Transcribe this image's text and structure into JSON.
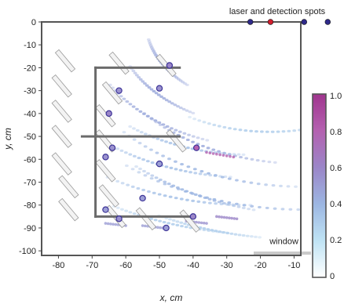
{
  "chart_data": {
    "type": "scatter",
    "title": "",
    "xlabel": "x, cm",
    "ylabel": "y, cm",
    "xlim": [
      -85,
      -8
    ],
    "ylim": [
      -102,
      0
    ],
    "xticks": [
      -80,
      -70,
      -60,
      -50,
      -40,
      -30,
      -20,
      -10
    ],
    "yticks": [
      0,
      -10,
      -20,
      -30,
      -40,
      -50,
      -60,
      -70,
      -80,
      -90,
      -100
    ],
    "colorbar": {
      "ticks": [
        0,
        0.2,
        0.4,
        0.6,
        0.8,
        1.0
      ],
      "tick_labels": [
        "0",
        "0.2",
        "0.4",
        "0.6",
        "0.8",
        "1.0"
      ],
      "colors": [
        "#ffffff",
        "#bfe3f4",
        "#9cb6e2",
        "#9b86c8",
        "#b461b0",
        "#a0358e"
      ]
    },
    "annotations": [
      {
        "text": "laser and detection spots",
        "x": -15,
        "y": 3.5
      },
      {
        "text": "window",
        "x": -13,
        "y": -97
      }
    ],
    "structure": [
      {
        "x": [
          -69,
          -69
        ],
        "y": [
          -20,
          -85
        ]
      },
      {
        "x": [
          -69,
          -44
        ],
        "y": [
          -20,
          -20
        ]
      },
      {
        "x": [
          -73,
          -44
        ],
        "y": [
          -50,
          -50
        ]
      },
      {
        "x": [
          -69,
          -40
        ],
        "y": [
          -85,
          -85
        ]
      }
    ],
    "window": {
      "x": [
        -22,
        -5
      ],
      "y": -101
    },
    "detection_spots": [
      {
        "x": -23,
        "y": 0,
        "color": "#2f2a8a"
      },
      {
        "x": -17,
        "y": 0,
        "color": "#d11e2e"
      },
      {
        "x": -7,
        "y": 0,
        "color": "#2f2a8a"
      },
      {
        "x": 0,
        "y": 0,
        "color": "#2f2a8a"
      }
    ],
    "points": [
      {
        "x": -47,
        "y": -19,
        "v": 0.6
      },
      {
        "x": -62,
        "y": -30,
        "v": 0.55
      },
      {
        "x": -50,
        "y": -29,
        "v": 0.55
      },
      {
        "x": -65,
        "y": -40,
        "v": 0.6
      },
      {
        "x": -39,
        "y": -55,
        "v": 0.8
      },
      {
        "x": -64,
        "y": -55,
        "v": 0.55
      },
      {
        "x": -66,
        "y": -59,
        "v": 0.55
      },
      {
        "x": -50,
        "y": -62,
        "v": 0.5
      },
      {
        "x": -55,
        "y": -77,
        "v": 0.5
      },
      {
        "x": -66,
        "y": -82,
        "v": 0.5
      },
      {
        "x": -62,
        "y": -86,
        "v": 0.55
      },
      {
        "x": -40,
        "y": -85,
        "v": 0.6
      },
      {
        "x": -48,
        "y": -90,
        "v": 0.5
      }
    ],
    "arcs": [
      {
        "cx": -17,
        "cy": 0,
        "r": 37,
        "a0": 192,
        "a1": 228,
        "v": 0.45
      },
      {
        "cx": -17,
        "cy": 0,
        "r": 46,
        "a0": 205,
        "a1": 240,
        "v": 0.45
      },
      {
        "cx": -17,
        "cy": 0,
        "r": 55,
        "a0": 210,
        "a1": 250,
        "v": 0.45
      },
      {
        "cx": -17,
        "cy": 0,
        "r": 48,
        "a0": 240,
        "a1": 290,
        "v": 0.3
      },
      {
        "cx": -7,
        "cy": 0,
        "r": 62,
        "a0": 220,
        "a1": 262,
        "v": 0.45
      },
      {
        "cx": -7,
        "cy": 0,
        "r": 72,
        "a0": 222,
        "a1": 268,
        "v": 0.4
      },
      {
        "cx": -7,
        "cy": 0,
        "r": 82,
        "a0": 230,
        "a1": 272,
        "v": 0.4
      },
      {
        "cx": 0,
        "cy": 0,
        "r": 85,
        "a0": 228,
        "a1": 255,
        "v": 0.4
      },
      {
        "cx": -23,
        "cy": 0,
        "r": 58,
        "a0": 232,
        "a1": 268,
        "v": 0.35
      },
      {
        "cx": -23,
        "cy": 0,
        "r": 68,
        "a0": 232,
        "a1": 265,
        "v": 0.35
      },
      {
        "cx": -23,
        "cy": 0,
        "r": 80,
        "a0": 238,
        "a1": 270,
        "v": 0.35
      },
      {
        "cx": -17,
        "cy": 0,
        "r": 93,
        "a0": 240,
        "a1": 262,
        "v": 0.3
      },
      {
        "cx": -7,
        "cy": 0,
        "r": 95,
        "a0": 243,
        "a1": 262,
        "v": 0.3
      }
    ],
    "streaks": [
      {
        "x": [
          -36,
          -28
        ],
        "y": [
          -57,
          -59
        ],
        "v": 0.8
      },
      {
        "x": -30,
        "y": -85,
        "v": 0.6
      },
      {
        "x": -39,
        "y": -87,
        "v": 0.55
      },
      {
        "x": -52,
        "y": -89,
        "v": 0.5
      },
      {
        "x": -63,
        "y": -88,
        "v": 0.5
      }
    ],
    "slabs": [
      {
        "x": -78,
        "y": -17
      },
      {
        "x": -62,
        "y": -18
      },
      {
        "x": -48,
        "y": -19
      },
      {
        "x": -79,
        "y": -28
      },
      {
        "x": -64,
        "y": -31
      },
      {
        "x": -79,
        "y": -39
      },
      {
        "x": -66,
        "y": -41
      },
      {
        "x": -79,
        "y": -50
      },
      {
        "x": -66,
        "y": -52
      },
      {
        "x": -45,
        "y": -52
      },
      {
        "x": -79,
        "y": -62
      },
      {
        "x": -66,
        "y": -65
      },
      {
        "x": -77,
        "y": -72
      },
      {
        "x": -65,
        "y": -76
      },
      {
        "x": -77,
        "y": -82
      },
      {
        "x": -63,
        "y": -85
      },
      {
        "x": -54,
        "y": -86
      },
      {
        "x": -41,
        "y": -87
      }
    ]
  }
}
